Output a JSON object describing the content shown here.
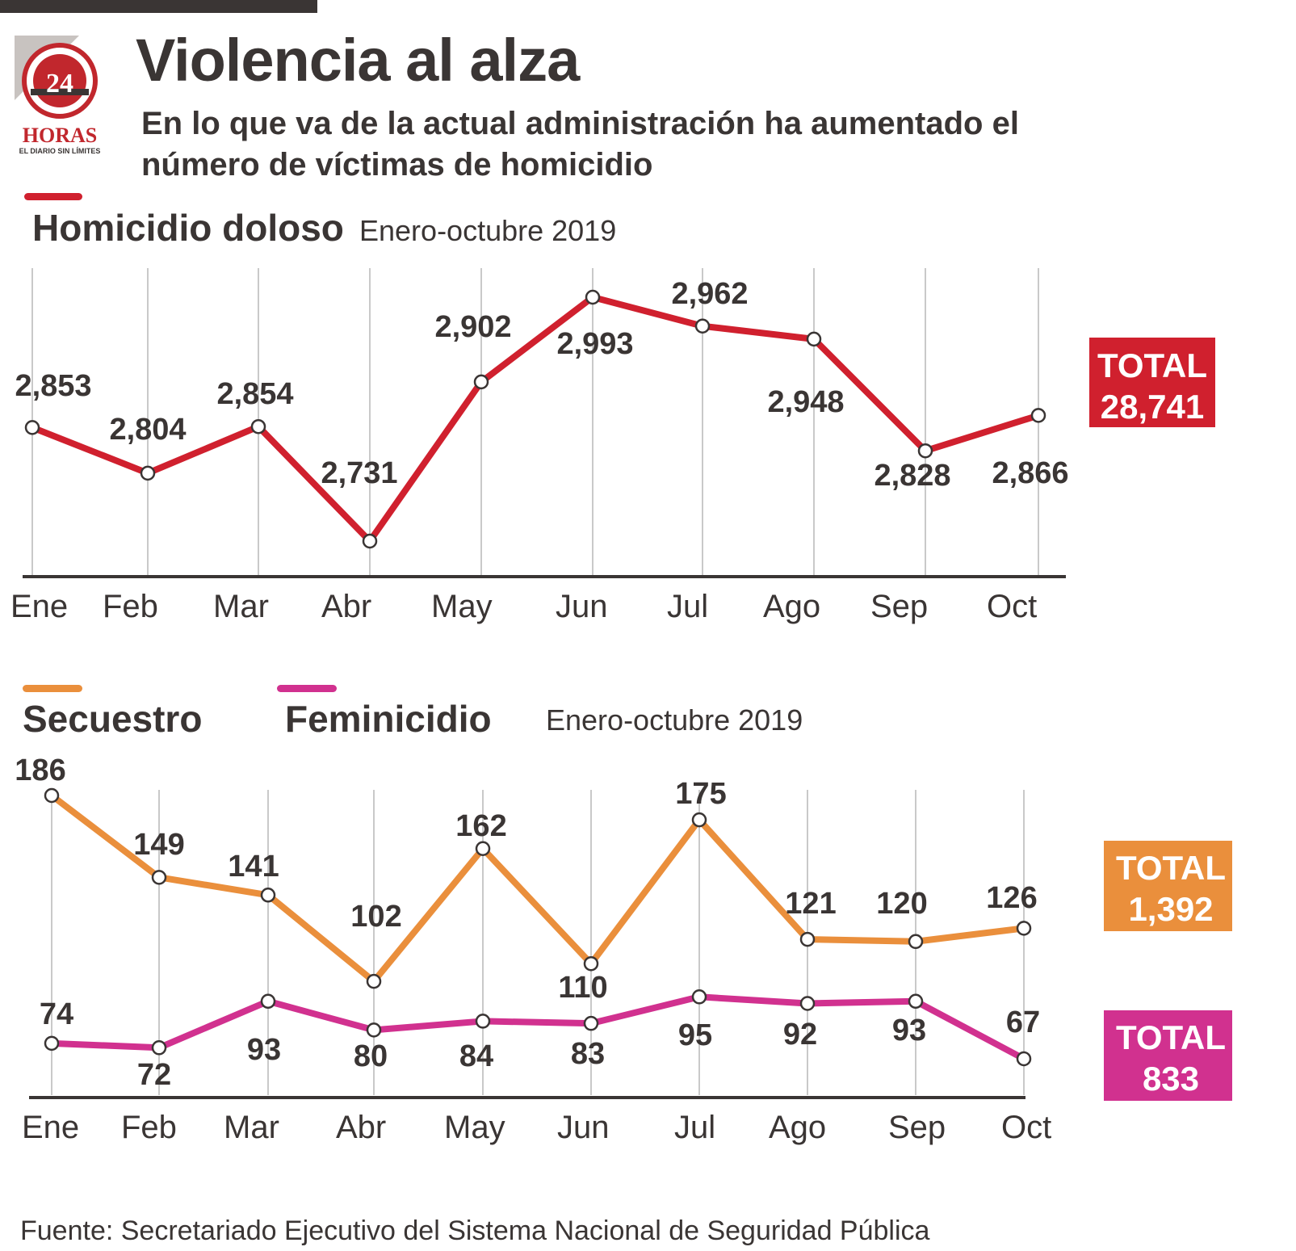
{
  "header": {
    "title": "Violencia al alza",
    "subtitle": "En lo que va de la actual administración ha aumentado el número de víctimas de homicidio",
    "logo": {
      "number": "24",
      "brand": "HORAS",
      "tagline": "EL DIARIO SIN LÍMITES"
    }
  },
  "source": "Fuente: Secretariado Ejecutivo del Sistema Nacional de Seguridad Pública",
  "chart_data": [
    {
      "type": "line",
      "period": "Enero-octubre 2019",
      "categories": [
        "Ene",
        "Feb",
        "Mar",
        "Abr",
        "May",
        "Jun",
        "Jul",
        "Ago",
        "Sep",
        "Oct"
      ],
      "series": [
        {
          "name": "Homicidio doloso",
          "color": "#d0202e",
          "values": [
            2853,
            2804,
            2854,
            2731,
            2902,
            2993,
            2962,
            2948,
            2828,
            2866
          ],
          "labels": [
            "2,853",
            "2,804",
            "2,854",
            "2,731",
            "2,902",
            "2,993",
            "2,962",
            "2,948",
            "2,828",
            "2,866"
          ],
          "total_label": "TOTAL",
          "total": "28,741"
        }
      ],
      "grid": true
    },
    {
      "type": "line",
      "period": "Enero-octubre 2019",
      "categories": [
        "Ene",
        "Feb",
        "Mar",
        "Abr",
        "May",
        "Jun",
        "Jul",
        "Ago",
        "Sep",
        "Oct"
      ],
      "series": [
        {
          "name": "Secuestro",
          "color": "#ea8f3c",
          "values": [
            186,
            149,
            141,
            102,
            162,
            110,
            175,
            121,
            120,
            126
          ],
          "labels": [
            "186",
            "149",
            "141",
            "102",
            "162",
            "110",
            "175",
            "121",
            "120",
            "126"
          ],
          "total_label": "TOTAL",
          "total": "1,392"
        },
        {
          "name": "Feminicidio",
          "color": "#d1318f",
          "values": [
            74,
            72,
            93,
            80,
            84,
            83,
            95,
            92,
            93,
            67
          ],
          "labels": [
            "74",
            "72",
            "93",
            "80",
            "84",
            "83",
            "95",
            "92",
            "93",
            "67"
          ],
          "total_label": "TOTAL",
          "total": "833"
        }
      ],
      "grid": true
    }
  ]
}
